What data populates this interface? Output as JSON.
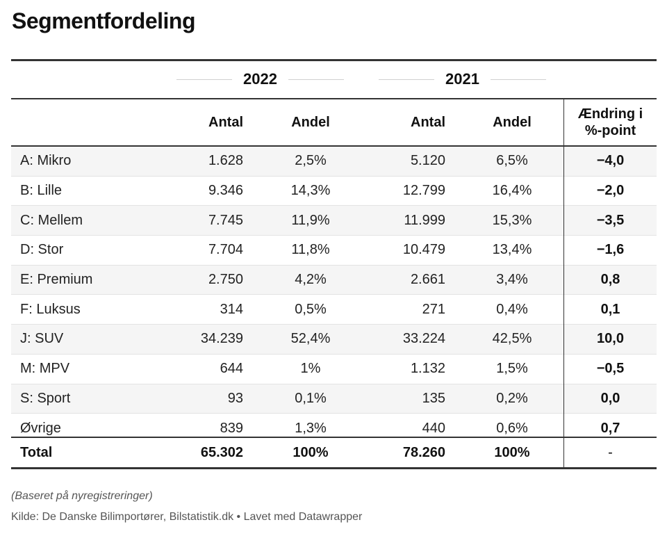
{
  "title": "Segmentfordeling",
  "year_headers": [
    "2022",
    "2021"
  ],
  "columns": {
    "antal_2022": "Antal",
    "andel_2022": "Andel",
    "antal_2021": "Antal",
    "andel_2021": "Andel",
    "change_line1": "Ændring i",
    "change_line2": "%-point"
  },
  "chart_data": {
    "type": "table",
    "title": "Segmentfordeling",
    "columns": [
      "",
      "2022 Antal",
      "2022 Andel",
      "2021 Antal",
      "2021 Andel",
      "Ændring i %-point"
    ],
    "rows": [
      {
        "segment": "A: Mikro",
        "antal_2022": "1.628",
        "andel_2022": "2,5%",
        "antal_2021": "5.120",
        "andel_2021": "6,5%",
        "change": "−4,0"
      },
      {
        "segment": "B: Lille",
        "antal_2022": "9.346",
        "andel_2022": "14,3%",
        "antal_2021": "12.799",
        "andel_2021": "16,4%",
        "change": "−2,0"
      },
      {
        "segment": "C: Mellem",
        "antal_2022": "7.745",
        "andel_2022": "11,9%",
        "antal_2021": "11.999",
        "andel_2021": "15,3%",
        "change": "−3,5"
      },
      {
        "segment": "D: Stor",
        "antal_2022": "7.704",
        "andel_2022": "11,8%",
        "antal_2021": "10.479",
        "andel_2021": "13,4%",
        "change": "−1,6"
      },
      {
        "segment": "E: Premium",
        "antal_2022": "2.750",
        "andel_2022": "4,2%",
        "antal_2021": "2.661",
        "andel_2021": "3,4%",
        "change": "0,8"
      },
      {
        "segment": "F: Luksus",
        "antal_2022": "314",
        "andel_2022": "0,5%",
        "antal_2021": "271",
        "andel_2021": "0,4%",
        "change": "0,1"
      },
      {
        "segment": "J: SUV",
        "antal_2022": "34.239",
        "andel_2022": "52,4%",
        "antal_2021": "33.224",
        "andel_2021": "42,5%",
        "change": "10,0"
      },
      {
        "segment": "M: MPV",
        "antal_2022": "644",
        "andel_2022": "1%",
        "antal_2021": "1.132",
        "andel_2021": "1,5%",
        "change": "−0,5"
      },
      {
        "segment": "S: Sport",
        "antal_2022": "93",
        "andel_2022": "0,1%",
        "antal_2021": "135",
        "andel_2021": "0,2%",
        "change": "0,0"
      },
      {
        "segment": "Øvrige",
        "antal_2022": "839",
        "andel_2022": "1,3%",
        "antal_2021": "440",
        "andel_2021": "0,6%",
        "change": "0,7"
      }
    ],
    "total": {
      "segment": "Total",
      "antal_2022": "65.302",
      "andel_2022": "100%",
      "antal_2021": "78.260",
      "andel_2021": "100%",
      "change": "-"
    }
  },
  "footer": {
    "note": "(Baseret på nyregistreringer)",
    "source": "Kilde: De Danske Bilimportører, Bilstatistik.dk • Lavet med Datawrapper"
  }
}
